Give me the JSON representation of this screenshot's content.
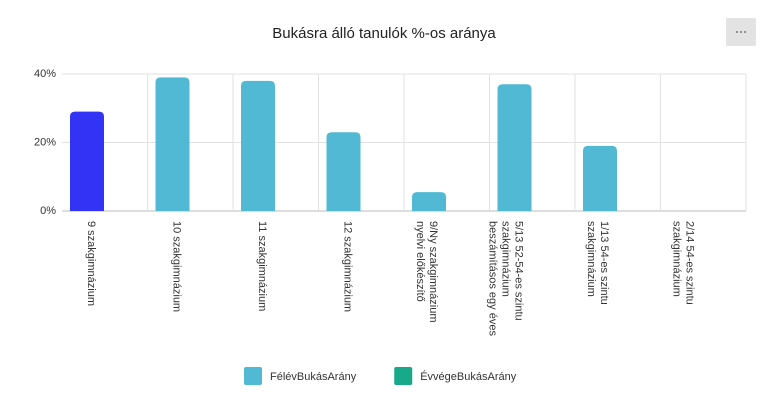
{
  "chart_data": {
    "type": "bar",
    "title": "Bukásra álló tanulók %-os aránya",
    "categories": [
      "9 szakgimnázium",
      "10 szakgimnázium",
      "11 szakgimnázium",
      "12 szakgimnázium",
      "9/Ny szakgimnázium nyelvi előkészítő",
      "5/13 52-54-es szintu szakgimnázium beszámításos egy éves",
      "1/13 54-es szintu szakgimnázium",
      "2/14 54-es szintu szakgimnázium"
    ],
    "series": [
      {
        "name": "FélévBukásArány",
        "color": "#52b9d4",
        "highlight_color": "#3333f5",
        "highlight_index": 0,
        "values": [
          29,
          39,
          38,
          23,
          5.5,
          37,
          19,
          0
        ]
      },
      {
        "name": "ÉvvégeBukásArány",
        "color": "#17a98a",
        "values": [
          null,
          null,
          null,
          null,
          null,
          null,
          null,
          null
        ]
      }
    ],
    "ylim": [
      0,
      40
    ],
    "yticks": [
      {
        "value": 0,
        "label": "0%"
      },
      {
        "value": 20,
        "label": "20%"
      },
      {
        "value": 40,
        "label": "40%"
      }
    ],
    "grid": true
  }
}
